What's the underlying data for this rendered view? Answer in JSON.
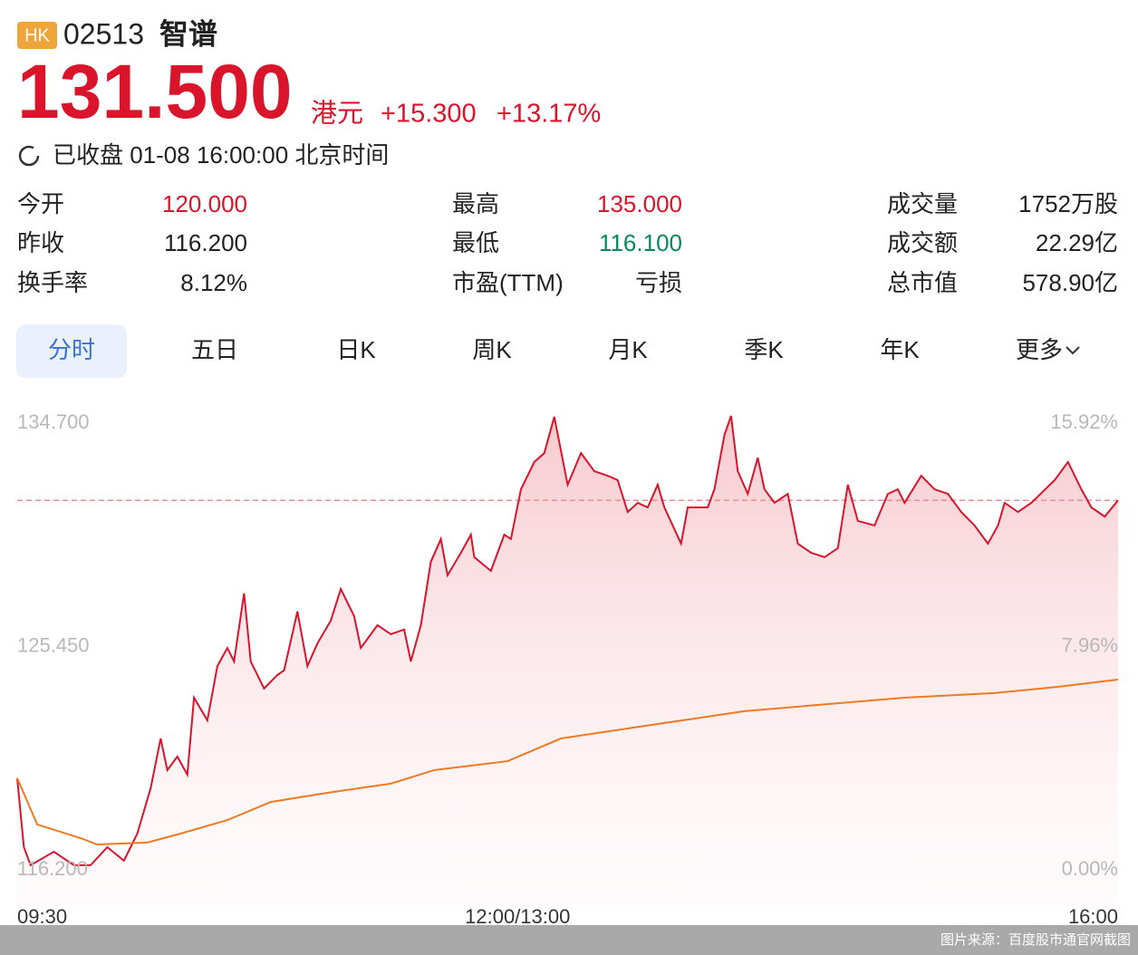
{
  "header": {
    "market": "HK",
    "code": "02513",
    "name": "智谱"
  },
  "quote": {
    "price": "131.500",
    "currency": "港元",
    "change": "+15.300",
    "change_percent": "+13.17%",
    "status": "已收盘 01-08 16:00:00 北京时间",
    "color": "#d9142b"
  },
  "stats": [
    [
      {
        "label": "今开",
        "value": "120.000",
        "color": "#d9142b"
      },
      {
        "label": "最高",
        "value": "135.000",
        "color": "#d9142b"
      },
      {
        "label": "成交量",
        "value": "1752万股"
      }
    ],
    [
      {
        "label": "昨收",
        "value": "116.200"
      },
      {
        "label": "最低",
        "value": "116.100",
        "color": "#0a8a5a"
      },
      {
        "label": "成交额",
        "value": "22.29亿"
      }
    ],
    [
      {
        "label": "换手率",
        "value": "8.12%"
      },
      {
        "label": "市盈(TTM)",
        "value": "亏损"
      },
      {
        "label": "总市值",
        "value": "578.90亿"
      }
    ]
  ],
  "tabs": [
    "分时",
    "五日",
    "日K",
    "周K",
    "月K",
    "季K",
    "年K",
    "更多"
  ],
  "active_tab": 0,
  "chart": {
    "type": "line",
    "xlim": [
      0,
      330
    ],
    "xticks": [
      {
        "value": 0,
        "label": "09:30"
      },
      {
        "value": 150,
        "label": "12:00/13:00"
      },
      {
        "value": 330,
        "label": "16:00"
      }
    ],
    "ylim": [
      116.2,
      134.7
    ],
    "yticks": [
      {
        "value": 116.2,
        "label": "116.200"
      },
      {
        "value": 125.45,
        "label": "125.450"
      },
      {
        "value": 134.7,
        "label": "134.700"
      }
    ],
    "y2lim": [
      0,
      15.92
    ],
    "y2ticks": [
      {
        "value": 0,
        "label": "0.00%"
      },
      {
        "value": 7.96,
        "label": "7.96%"
      },
      {
        "value": 15.92,
        "label": "15.92%"
      }
    ],
    "series": [
      {
        "color": "#d9142b",
        "x": [
          0,
          2,
          4,
          11,
          17,
          22,
          27,
          32,
          36,
          40,
          43,
          45,
          48,
          51,
          53,
          57,
          60,
          63,
          65,
          68,
          70,
          74,
          78,
          80,
          84,
          87,
          90,
          94,
          97,
          101,
          103,
          108,
          112,
          116,
          118,
          121,
          124,
          127,
          129,
          133,
          136,
          137,
          142,
          146,
          148,
          151,
          155,
          158,
          161,
          165,
          169,
          173,
          177,
          180,
          183,
          186,
          189,
          192,
          194,
          199,
          201,
          207,
          209,
          212,
          214,
          216,
          219,
          222,
          224,
          227,
          231,
          234,
          238,
          242,
          246,
          249,
          252,
          257,
          261,
          264,
          266,
          271,
          275,
          279,
          283,
          287,
          291,
          294,
          296,
          300,
          304,
          311,
          315,
          319,
          322,
          326,
          330
        ],
        "values": [
          120.0,
          117.14,
          116.39,
          116.95,
          116.39,
          116.39,
          117.14,
          116.58,
          117.7,
          119.58,
          121.64,
          120.33,
          120.89,
          120.14,
          123.33,
          122.39,
          124.64,
          125.39,
          124.83,
          127.65,
          124.83,
          123.71,
          124.27,
          124.46,
          126.9,
          124.64,
          125.58,
          126.52,
          127.83,
          126.71,
          125.39,
          126.33,
          125.96,
          126.15,
          124.83,
          126.33,
          128.96,
          129.9,
          128.4,
          129.33,
          130.08,
          129.15,
          128.58,
          130.08,
          129.9,
          131.96,
          133.09,
          133.46,
          134.96,
          132.15,
          133.46,
          132.71,
          132.52,
          132.34,
          131.02,
          131.4,
          131.21,
          132.15,
          131.21,
          129.71,
          131.21,
          131.21,
          131.96,
          134.21,
          135.0,
          132.71,
          131.77,
          133.27,
          131.96,
          131.4,
          131.77,
          129.71,
          129.33,
          129.15,
          129.52,
          132.15,
          130.65,
          130.46,
          131.77,
          131.96,
          131.4,
          132.52,
          131.96,
          131.77,
          131.02,
          130.46,
          129.71,
          130.46,
          131.4,
          131.02,
          131.4,
          132.34,
          133.09,
          131.96,
          131.21,
          130.83,
          131.5
        ]
      },
      {
        "color": "#ee7a22",
        "x": [
          0,
          6,
          19,
          24,
          39,
          49,
          63,
          76,
          93,
          112,
          125,
          147,
          163,
          190,
          218,
          240,
          266,
          293,
          312,
          330
        ],
        "values": [
          120.0,
          118.08,
          117.51,
          117.25,
          117.33,
          117.7,
          118.26,
          119.01,
          119.39,
          119.77,
          120.33,
          120.7,
          121.64,
          122.2,
          122.77,
          123.03,
          123.33,
          123.52,
          123.78,
          124.08
        ]
      }
    ]
  },
  "source": "图片来源：百度股市通官网截图"
}
